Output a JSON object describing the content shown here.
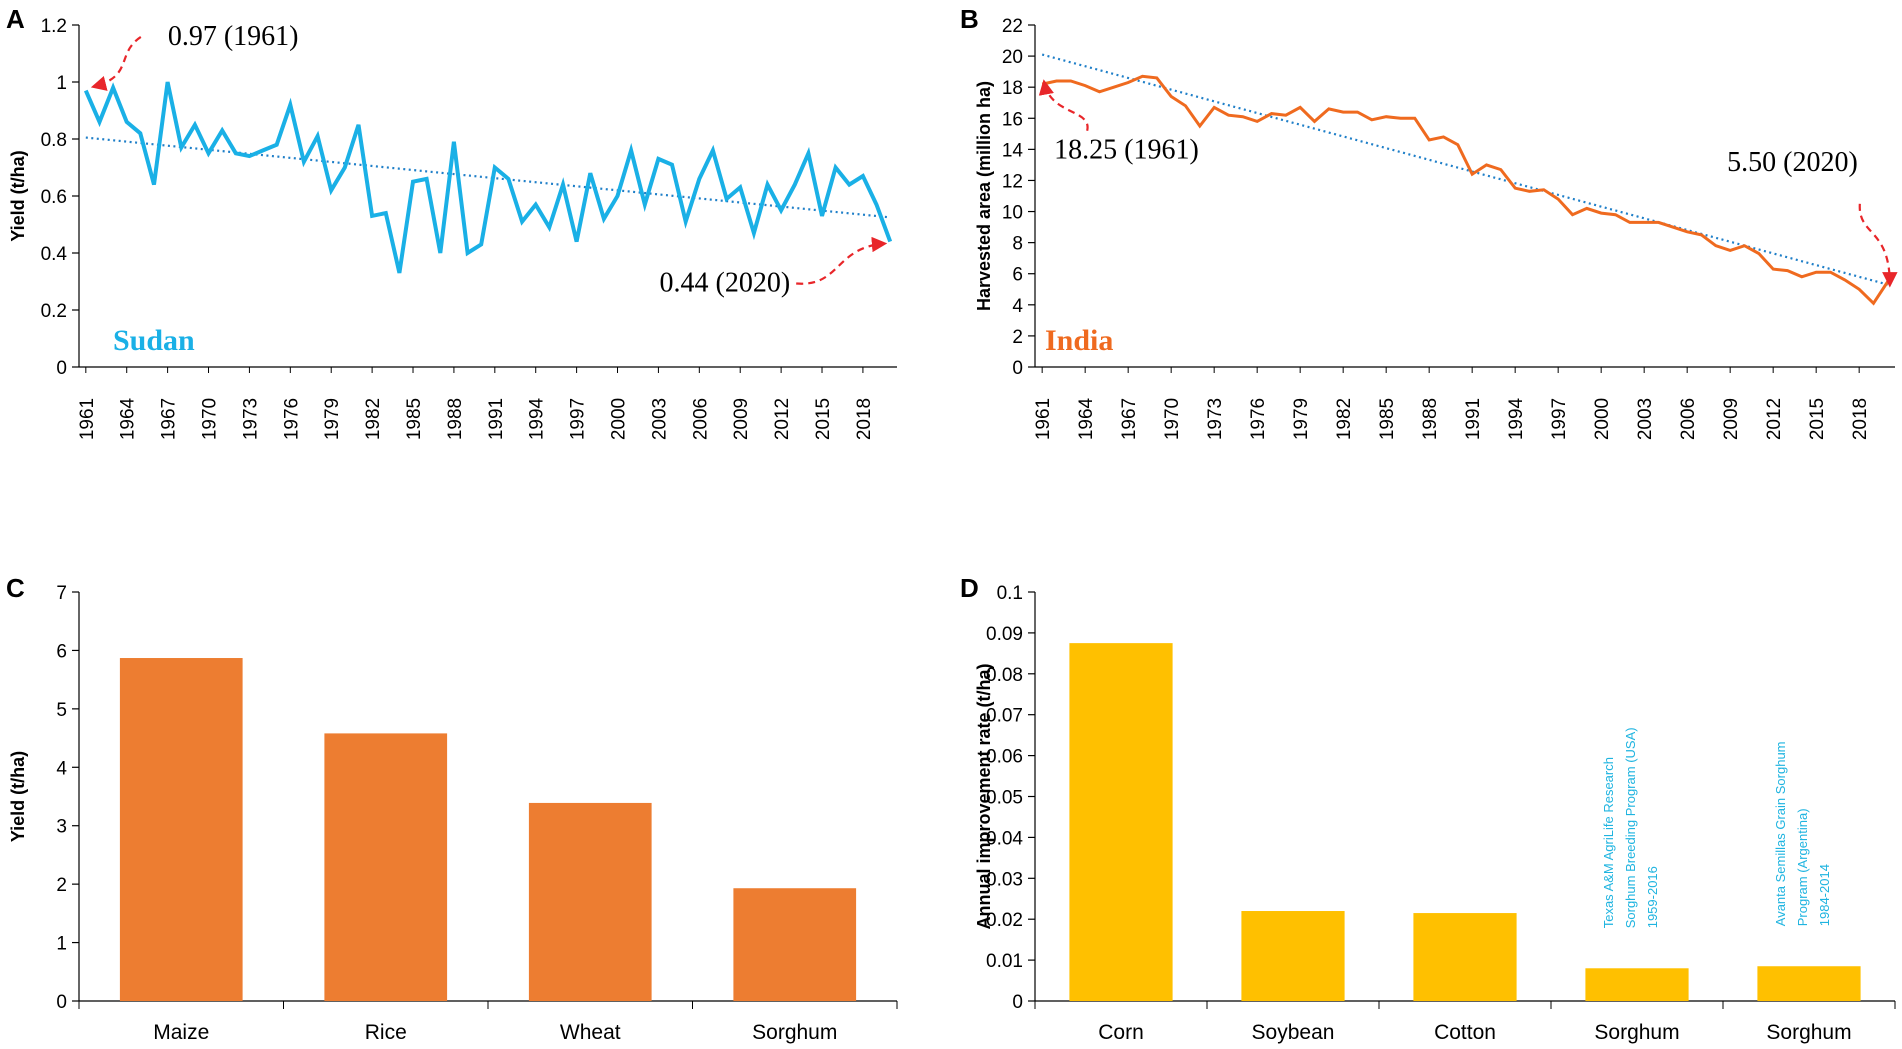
{
  "chart_data": [
    {
      "panel": "A",
      "type": "line",
      "ylabel": "Yield (t/ha)",
      "country": "Sudan",
      "color": "#1ab0e6",
      "trend_color": "#1f7fc8",
      "ylim": [
        0,
        1.2
      ],
      "yticks": [
        0,
        0.2,
        0.4,
        0.6,
        0.8,
        1,
        1.2
      ],
      "ytick_labels": [
        "0",
        "0.2",
        "0.4",
        "0.6",
        "0.8",
        "1",
        "1.2"
      ],
      "xtick_labels": [
        "1961",
        "1964",
        "1967",
        "1970",
        "1973",
        "1976",
        "1979",
        "1982",
        "1985",
        "1988",
        "1991",
        "1994",
        "1997",
        "2000",
        "2003",
        "2006",
        "2009",
        "2012",
        "2015",
        "2018"
      ],
      "x_start": 1961,
      "x_end": 2020,
      "values": [
        0.97,
        0.86,
        0.98,
        0.86,
        0.82,
        0.64,
        1.0,
        0.77,
        0.85,
        0.75,
        0.83,
        0.75,
        0.74,
        0.76,
        0.78,
        0.92,
        0.72,
        0.81,
        0.62,
        0.7,
        0.85,
        0.53,
        0.54,
        0.33,
        0.65,
        0.66,
        0.4,
        0.79,
        0.4,
        0.43,
        0.7,
        0.66,
        0.51,
        0.57,
        0.49,
        0.64,
        0.44,
        0.68,
        0.52,
        0.6,
        0.76,
        0.57,
        0.73,
        0.71,
        0.51,
        0.66,
        0.76,
        0.59,
        0.63,
        0.47,
        0.64,
        0.55,
        0.64,
        0.75,
        0.53,
        0.7,
        0.64,
        0.67,
        0.57,
        0.44
      ],
      "trend": [
        0.805,
        0.525
      ],
      "annotations": [
        {
          "text": "0.97 (1961)",
          "year": 1961,
          "value": 0.97
        },
        {
          "text": "0.44 (2020)",
          "year": 2020,
          "value": 0.44
        }
      ]
    },
    {
      "panel": "B",
      "type": "line",
      "ylabel": "Harvested area (million ha)",
      "country": "India",
      "color": "#ef6a1f",
      "trend_color": "#1f7fc8",
      "ylim": [
        0,
        22
      ],
      "yticks": [
        0,
        2,
        4,
        6,
        8,
        10,
        12,
        14,
        16,
        18,
        20,
        22
      ],
      "ytick_labels": [
        "0",
        "2",
        "4",
        "6",
        "8",
        "10",
        "12",
        "14",
        "16",
        "18",
        "20",
        "22"
      ],
      "xtick_labels": [
        "1961",
        "1964",
        "1967",
        "1970",
        "1973",
        "1976",
        "1979",
        "1982",
        "1985",
        "1988",
        "1991",
        "1994",
        "1997",
        "2000",
        "2003",
        "2006",
        "2009",
        "2012",
        "2015",
        "2018"
      ],
      "x_start": 1961,
      "x_end": 2020,
      "values": [
        18.2,
        18.4,
        18.4,
        18.1,
        17.7,
        18.0,
        18.3,
        18.7,
        18.6,
        17.4,
        16.8,
        15.5,
        16.7,
        16.2,
        16.1,
        15.8,
        16.3,
        16.2,
        16.7,
        15.8,
        16.6,
        16.4,
        16.4,
        15.9,
        16.1,
        16.0,
        16.0,
        14.6,
        14.8,
        14.3,
        12.4,
        13.0,
        12.7,
        11.5,
        11.3,
        11.4,
        10.8,
        9.8,
        10.2,
        9.9,
        9.8,
        9.3,
        9.3,
        9.3,
        9.0,
        8.7,
        8.5,
        7.8,
        7.5,
        7.8,
        7.3,
        6.3,
        6.2,
        5.8,
        6.1,
        6.1,
        5.6,
        5.0,
        4.1,
        5.5
      ],
      "trend": [
        20.1,
        5.3
      ],
      "annotations": [
        {
          "text": "18.25 (1961)",
          "year": 1961,
          "value": 18.25
        },
        {
          "text": "5.50 (2020)",
          "year": 2020,
          "value": 5.5
        }
      ]
    },
    {
      "panel": "C",
      "type": "bar",
      "ylabel": "Yield (t/ha)",
      "color": "#ed7d31",
      "ylim": [
        0,
        7
      ],
      "yticks": [
        0,
        1,
        2,
        3,
        4,
        5,
        6,
        7
      ],
      "ytick_labels": [
        "0",
        "1",
        "2",
        "3",
        "4",
        "5",
        "6",
        "7"
      ],
      "categories": [
        "Maize",
        "Rice",
        "Wheat",
        "Sorghum"
      ],
      "values": [
        5.87,
        4.58,
        3.39,
        1.93
      ]
    },
    {
      "panel": "D",
      "type": "bar",
      "ylabel": "Annual improvement rate (t/ha)",
      "color": "#ffc000",
      "ylim": [
        0,
        0.1
      ],
      "yticks": [
        0,
        0.01,
        0.02,
        0.03,
        0.04,
        0.05,
        0.06,
        0.07,
        0.08,
        0.09,
        0.1
      ],
      "ytick_labels": [
        "0",
        "0.01",
        "0.02",
        "0.03",
        "0.04",
        "0.05",
        "0.06",
        "0.07",
        "0.08",
        "0.09",
        "0.1"
      ],
      "categories": [
        "Corn",
        "Soybean",
        "Cotton",
        "Sorghum",
        "Sorghum"
      ],
      "values": [
        0.0875,
        0.022,
        0.0215,
        0.008,
        0.0085
      ],
      "bar_notes": [
        {
          "index": 3,
          "lines": [
            "Texas A&M AgriLife Research",
            "Sorghum Breeding Program (USA)",
            "1959-2016"
          ]
        },
        {
          "index": 4,
          "lines": [
            "Avanta Semillas Grain Sorghum",
            "Program (Argentina)",
            "1984-2014"
          ]
        }
      ]
    }
  ]
}
